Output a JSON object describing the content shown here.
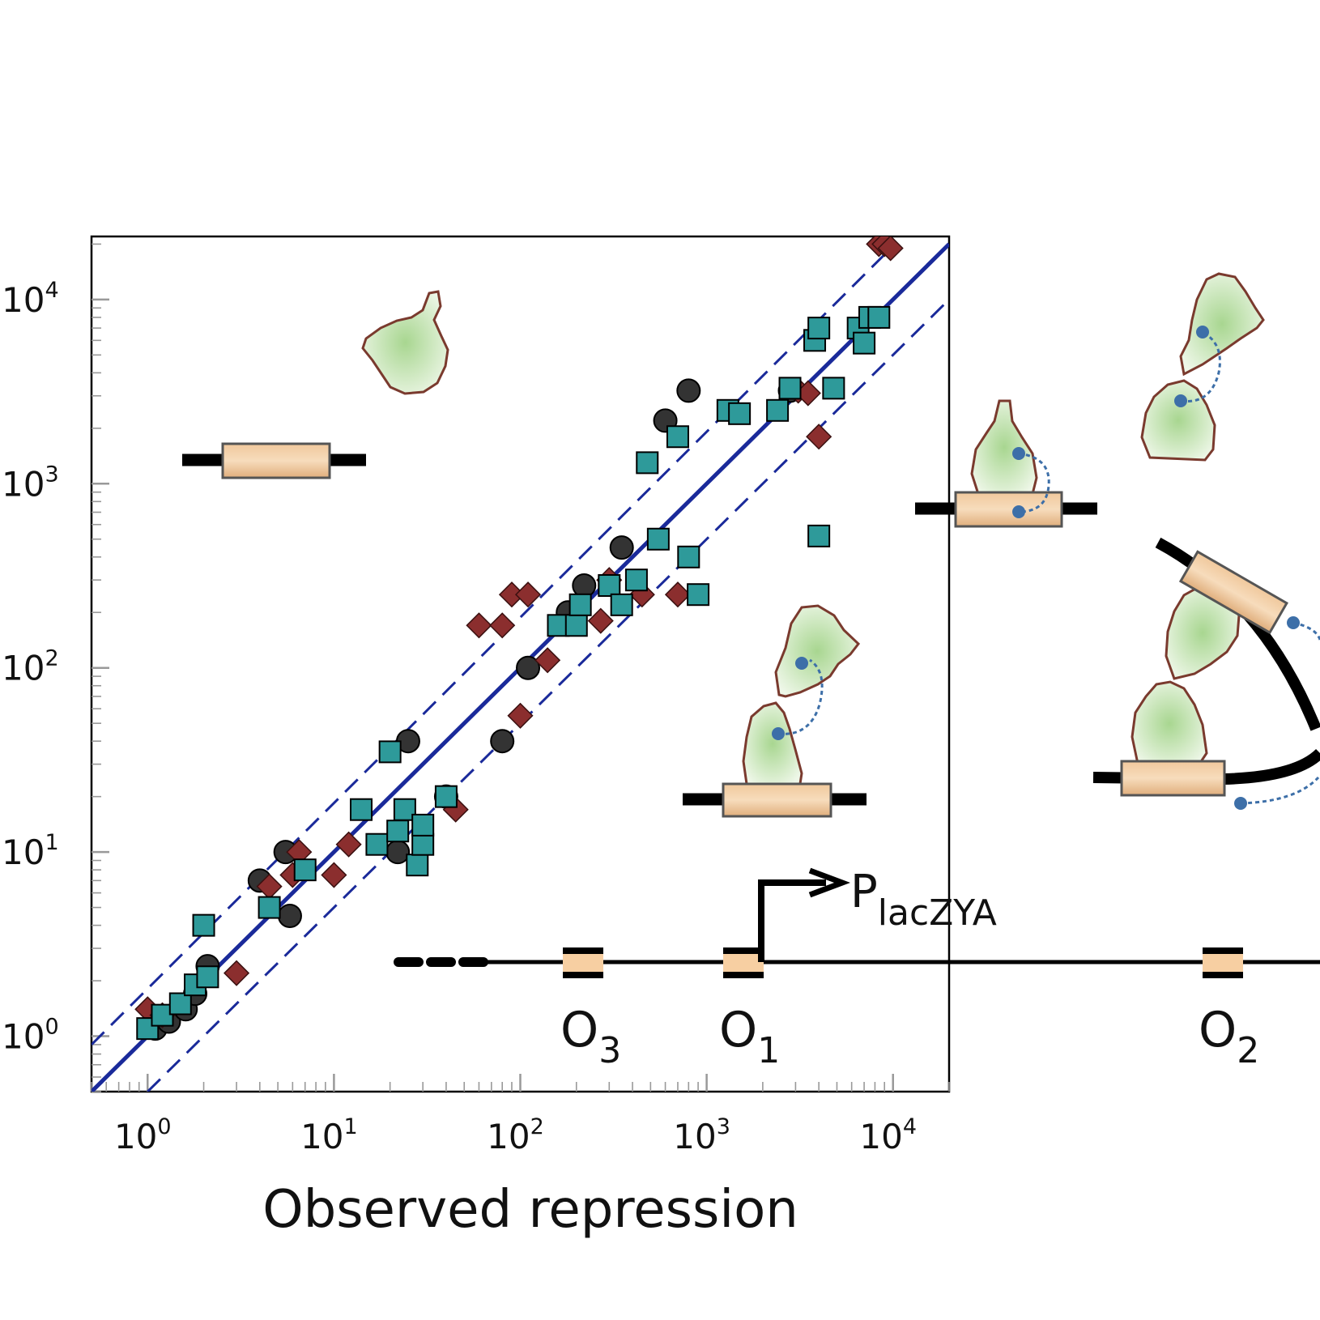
{
  "chart_data": {
    "type": "scatter",
    "title": "",
    "xlabel": "Observed repression",
    "ylabel": "",
    "xscale": "log",
    "yscale": "log",
    "xlim": [
      0.5,
      20000
    ],
    "ylim": [
      0.5,
      22000
    ],
    "grid": false,
    "x_ticks": [
      {
        "base": "10",
        "exp": "0"
      },
      {
        "base": "10",
        "exp": "1"
      },
      {
        "base": "10",
        "exp": "2"
      },
      {
        "base": "10",
        "exp": "3"
      },
      {
        "base": "10",
        "exp": "4"
      }
    ],
    "y_ticks": [
      {
        "base": "10",
        "exp": "0"
      },
      {
        "base": "10",
        "exp": "1"
      },
      {
        "base": "10",
        "exp": "2"
      },
      {
        "base": "10",
        "exp": "3"
      },
      {
        "base": "10",
        "exp": "4"
      }
    ],
    "series": [
      {
        "marker": "circle",
        "color": "#333333",
        "points": [
          [
            1.1,
            1.1
          ],
          [
            1.3,
            1.2
          ],
          [
            1.6,
            1.4
          ],
          [
            1.8,
            1.7
          ],
          [
            2.1,
            2.4
          ],
          [
            4,
            7
          ],
          [
            5.5,
            10
          ],
          [
            5.8,
            4.5
          ],
          [
            22,
            10
          ],
          [
            25,
            40
          ],
          [
            40,
            20
          ],
          [
            80,
            40
          ],
          [
            110,
            100
          ],
          [
            180,
            200
          ],
          [
            220,
            280
          ],
          [
            350,
            450
          ],
          [
            600,
            2200
          ],
          [
            800,
            3200
          ],
          [
            2800,
            3200
          ]
        ]
      },
      {
        "marker": "diamond",
        "color": "#8b2e2e",
        "points": [
          [
            1,
            1.4
          ],
          [
            1.2,
            1.3
          ],
          [
            3,
            2.2
          ],
          [
            4.5,
            6.5
          ],
          [
            6,
            7.5
          ],
          [
            6.5,
            10
          ],
          [
            10,
            7.5
          ],
          [
            12,
            11
          ],
          [
            45,
            17
          ],
          [
            60,
            170
          ],
          [
            80,
            170
          ],
          [
            90,
            250
          ],
          [
            110,
            250
          ],
          [
            140,
            110
          ],
          [
            100,
            55
          ],
          [
            270,
            180
          ],
          [
            300,
            300
          ],
          [
            450,
            250
          ],
          [
            700,
            250
          ],
          [
            3100,
            3200
          ],
          [
            3500,
            3100
          ],
          [
            4000,
            1800
          ],
          [
            8400,
            20000
          ],
          [
            9000,
            20000
          ],
          [
            9700,
            19000
          ]
        ]
      },
      {
        "marker": "square",
        "color": "#2e9a9a",
        "points": [
          [
            1,
            1.1
          ],
          [
            1.2,
            1.3
          ],
          [
            1.5,
            1.5
          ],
          [
            1.8,
            1.9
          ],
          [
            2,
            4
          ],
          [
            2.1,
            2.1
          ],
          [
            4.5,
            5
          ],
          [
            7,
            8
          ],
          [
            14,
            17
          ],
          [
            17,
            11
          ],
          [
            20,
            35
          ],
          [
            22,
            13
          ],
          [
            24,
            17
          ],
          [
            28,
            8.5
          ],
          [
            30,
            11
          ],
          [
            30,
            14
          ],
          [
            40,
            20
          ],
          [
            160,
            170
          ],
          [
            200,
            170
          ],
          [
            210,
            220
          ],
          [
            300,
            280
          ],
          [
            350,
            220
          ],
          [
            420,
            300
          ],
          [
            550,
            500
          ],
          [
            700,
            1800
          ],
          [
            800,
            400
          ],
          [
            900,
            250
          ],
          [
            480,
            1300
          ],
          [
            1300,
            2500
          ],
          [
            1500,
            2400
          ],
          [
            2400,
            2500
          ],
          [
            2800,
            3300
          ],
          [
            3800,
            6000
          ],
          [
            4000,
            7000
          ],
          [
            4000,
            520
          ],
          [
            4800,
            3300
          ],
          [
            6500,
            7000
          ],
          [
            7000,
            5800
          ],
          [
            7500,
            8000
          ],
          [
            8400,
            8000
          ]
        ]
      }
    ],
    "fit_line": {
      "x": [
        0.5,
        20000
      ],
      "y": [
        0.5,
        20000
      ],
      "style": "solid"
    },
    "band_lines": [
      {
        "x": [
          0.5,
          10000
        ],
        "y": [
          0.9,
          19500
        ],
        "style": "dashed"
      },
      {
        "x": [
          1,
          20000
        ],
        "y": [
          0.5,
          10000
        ],
        "style": "dashed"
      }
    ],
    "schematic": {
      "promoter": {
        "base": "P",
        "sub": "lacZYA"
      },
      "operators": [
        {
          "base": "O",
          "sub": "3"
        },
        {
          "base": "O",
          "sub": "1"
        },
        {
          "base": "O",
          "sub": "2"
        }
      ],
      "colors": {
        "repressor_fill": "#cfe6bd",
        "repressor_edge": "#7a3a2e",
        "operator_box": "#e6b889",
        "dna": "#000000",
        "tether": "#3d6fa8"
      }
    }
  }
}
